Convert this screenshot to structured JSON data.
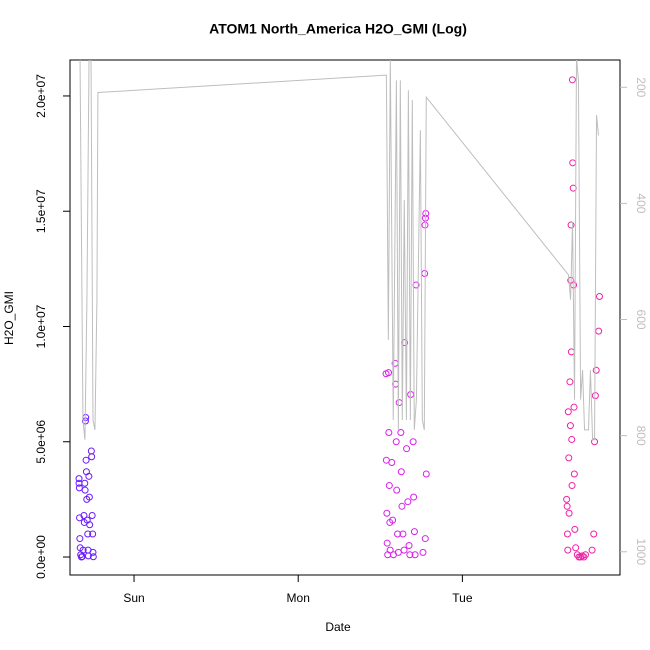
{
  "chart_data": {
    "type": "scatter",
    "title": "ATOM1 North_America H2O_GMI (Log)",
    "x_label": "Date",
    "y_label": "H2O_GMI",
    "xlim": [
      0.61,
      3.96
    ],
    "xticks": [
      {
        "value": 1,
        "label": "Sun"
      },
      {
        "value": 2,
        "label": "Mon"
      },
      {
        "value": 3,
        "label": "Tue"
      }
    ],
    "ylim": [
      -780000,
      21560000
    ],
    "yticks": [
      {
        "value": 0,
        "label": "0.0e+00"
      },
      {
        "value": 5000000,
        "label": "5.0e+06"
      },
      {
        "value": 10000000,
        "label": "1.0e+07"
      },
      {
        "value": 15000000,
        "label": "1.5e+07"
      },
      {
        "value": 20000000,
        "label": "2.0e+07"
      }
    ],
    "y2lim": [
      1040,
      153
    ],
    "y2ticks": [
      200,
      400,
      600,
      800,
      1000
    ],
    "series": [
      {
        "type": "scatter",
        "color": "#6a1aff",
        "x": [
          0.665,
          0.665,
          0.667,
          0.668,
          0.67,
          0.672,
          0.675,
          0.68,
          0.685,
          0.69,
          0.695,
          0.697,
          0.7,
          0.702,
          0.704,
          0.706,
          0.708,
          0.71,
          0.712,
          0.715,
          0.718,
          0.72,
          0.722,
          0.725,
          0.728,
          0.73,
          0.74,
          0.742,
          0.745,
          0.748,
          0.75,
          0.752
        ],
        "values": [
          3400000,
          3200000,
          3000000,
          1700000,
          800000,
          400000,
          100000,
          0,
          20000,
          300000,
          1800000,
          1500000,
          3200000,
          2900000,
          5900000,
          6050000,
          4200000,
          3700000,
          2500000,
          1600000,
          1000000,
          300000,
          50000,
          3500000,
          2600000,
          1400000,
          4600000,
          4350000,
          1800000,
          1000000,
          200000,
          10000
        ]
      },
      {
        "type": "scatter",
        "color": "#d822ea",
        "x": [
          2.535,
          2.537,
          2.54,
          2.542,
          2.545,
          2.55,
          2.552,
          2.555,
          2.558,
          2.56,
          2.57,
          2.575,
          2.58,
          2.59,
          2.593,
          2.597,
          2.6,
          2.605,
          2.61,
          2.615,
          2.625,
          2.628,
          2.632,
          2.638,
          2.645,
          2.648,
          2.66,
          2.668,
          2.675,
          2.68,
          2.685,
          2.7,
          2.703,
          2.708,
          2.712,
          2.718,
          2.77,
          2.772,
          2.775,
          2.777,
          2.78,
          2.774,
          2.76
        ],
        "values": [
          7950000,
          4200000,
          1900000,
          600000,
          100000,
          8000000,
          5400000,
          3100000,
          1500000,
          300000,
          4100000,
          1600000,
          100000,
          8400000,
          7500000,
          5000000,
          2900000,
          1000000,
          200000,
          6700000,
          5400000,
          3700000,
          2200000,
          1000000,
          300000,
          9300000,
          4700000,
          2400000,
          500000,
          100000,
          7050000,
          5000000,
          2600000,
          1100000,
          100000,
          11800000,
          12300000,
          14400000,
          14700000,
          14900000,
          3600000,
          800000,
          200000
        ]
      },
      {
        "type": "scatter",
        "color": "#f220a8",
        "x": [
          3.635,
          3.638,
          3.64,
          3.642,
          3.645,
          3.648,
          3.65,
          3.655,
          3.658,
          3.66,
          3.662,
          3.664,
          3.666,
          3.668,
          3.67,
          3.672,
          3.675,
          3.677,
          3.68,
          3.682,
          3.685,
          3.69,
          3.7,
          3.71,
          3.72,
          3.73,
          3.74,
          3.75,
          3.805,
          3.81,
          3.815,
          3.83,
          3.835,
          3.8,
          3.79
        ],
        "values": [
          2500000,
          2200000,
          1000000,
          300000,
          6300000,
          4300000,
          1900000,
          7600000,
          5700000,
          12000000,
          14400000,
          8900000,
          5100000,
          3100000,
          20700000,
          17100000,
          16000000,
          11800000,
          6500000,
          3600000,
          1200000,
          400000,
          100000,
          0,
          0,
          50000,
          0,
          100000,
          5000000,
          7000000,
          8100000,
          9800000,
          11300000,
          1000000,
          300000
        ]
      },
      {
        "type": "line",
        "axis": "y2",
        "color": "#bebebe",
        "x": [
          0.671,
          0.689,
          0.701,
          0.713,
          0.726,
          0.738,
          0.75,
          0.762,
          0.774,
          0.78,
          2.537,
          2.549,
          2.561,
          2.579,
          2.598,
          2.61,
          2.622,
          2.634,
          2.646,
          2.659,
          2.671,
          2.683,
          2.695,
          2.707,
          2.72,
          2.744,
          2.756,
          2.768,
          2.78,
          3.646,
          3.659,
          3.671,
          3.683,
          3.695,
          3.707,
          3.72,
          3.732,
          3.744,
          3.756,
          3.768,
          3.78,
          3.793,
          3.805,
          3.817,
          3.829
        ],
        "values": [
          150,
          773,
          807,
          566,
          150,
          150,
          773,
          790,
          566,
          209,
          179,
          635,
          150,
          773,
          188,
          790,
          188,
          773,
          394,
          773,
          205,
          773,
          222,
          790,
          738,
          274,
          773,
          790,
          217,
          523,
          566,
          432,
          738,
          150,
          188,
          738,
          687,
          790,
          790,
          790,
          687,
          807,
          807,
          248,
          283
        ]
      }
    ]
  }
}
